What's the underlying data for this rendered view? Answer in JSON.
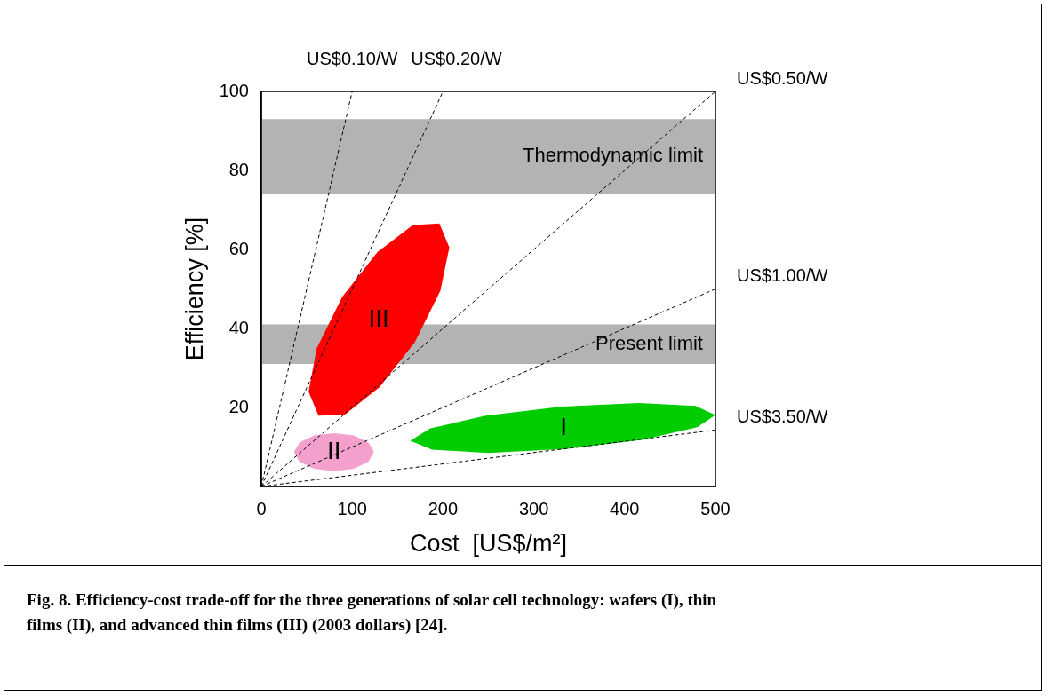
{
  "chart_data": {
    "type": "line",
    "xlabel": "Cost  [US$/m²]",
    "ylabel": "Efficiency [%]",
    "xlim": [
      0,
      500
    ],
    "ylim": [
      0,
      100
    ],
    "xticks": [
      0,
      100,
      200,
      300,
      400,
      500
    ],
    "yticks": [
      20,
      40,
      60,
      80,
      100
    ],
    "grid": false,
    "legend": false,
    "marker": "none",
    "bands": [
      {
        "axis": "y",
        "from": 74,
        "to": 93,
        "label": "Thermodynamic limit",
        "color": "#b3b3b3"
      },
      {
        "axis": "y",
        "from": 31,
        "to": 41,
        "label": "Present limit",
        "color": "#b3b3b3"
      }
    ],
    "series": [
      {
        "name": "III",
        "type": "area",
        "color": "#ff0000",
        "x": [
          196,
          207,
          197,
          169,
          130,
          92,
          63,
          52,
          61,
          89,
          128,
          167
        ],
        "values": [
          66.6,
          60.5,
          49.5,
          36.5,
          25.1,
          18.2,
          17.9,
          24,
          35,
          48,
          59.4,
          66.2
        ]
      },
      {
        "name": "II",
        "type": "area",
        "color": "#f4a0cc",
        "x": [
          124,
          118,
          102,
          80,
          58,
          42,
          36,
          42,
          58,
          80,
          102,
          118
        ],
        "values": [
          8.7,
          11.1,
          12.9,
          13.5,
          12.9,
          11.1,
          8.7,
          6.3,
          4.5,
          3.9,
          4.5,
          6.3
        ]
      },
      {
        "name": "I",
        "type": "area",
        "color": "#00cc00",
        "x": [
          500,
          480,
          419,
          335,
          250,
          188,
          164,
          186,
          247,
          331,
          415,
          478
        ],
        "values": [
          18.1,
          15,
          11.8,
          9.5,
          8.5,
          9.3,
          11.6,
          14.7,
          17.9,
          20.2,
          21.1,
          20.4
        ]
      },
      {
        "name": "US$0.10/W",
        "line_style": "dashed",
        "color": "#000000",
        "x": [
          0,
          100
        ],
        "values": [
          0,
          100
        ]
      },
      {
        "name": "US$0.20/W",
        "line_style": "dashed",
        "color": "#000000",
        "x": [
          0,
          200
        ],
        "values": [
          0,
          100
        ]
      },
      {
        "name": "US$0.50/W",
        "line_style": "dashed",
        "color": "#000000",
        "x": [
          0,
          500
        ],
        "values": [
          0,
          100
        ]
      },
      {
        "name": "US$1.00/W",
        "line_style": "dashed",
        "color": "#000000",
        "x": [
          0,
          500
        ],
        "values": [
          0,
          50
        ]
      },
      {
        "name": "US$3.50/W",
        "line_style": "dashed",
        "color": "#000000",
        "x": [
          0,
          500
        ],
        "values": [
          0,
          14.3
        ]
      }
    ],
    "annotations": [
      "Fig. 8.    Efficiency-cost trade-off for the three generations of solar cell technology: wafers (I), thin films (II), and advanced thin films (III) (2003 dollars) [24]."
    ]
  }
}
